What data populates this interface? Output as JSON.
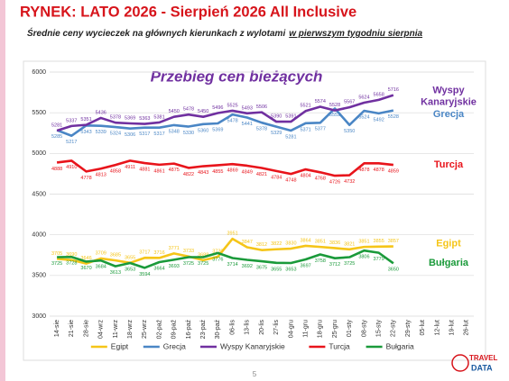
{
  "chart_data": {
    "type": "line",
    "title": "RYNEK: LATO 2026 - Sierpień 2026 All Inclusive",
    "subtitle": "Średnie ceny wycieczek na głównych kierunkach  z wylotami",
    "subtitle_underlined": "w pierwszym tygodniu sierpnia",
    "chart_title": "Przebieg cen bieżących",
    "categories": [
      "14-sie",
      "21-sie",
      "28-sie",
      "04-wrz",
      "11-wrz",
      "18-wrz",
      "25-wrz",
      "02-paź",
      "09-paź",
      "16-paź",
      "23-paź",
      "30-paź",
      "06-lis",
      "13-lis",
      "20-lis",
      "27-lis",
      "04-gru",
      "11-gru",
      "18-gru",
      "25-gru",
      "01-sty",
      "08-sty",
      "15-sty",
      "22-sty",
      "29-sty",
      "05-lut",
      "12-lut",
      "19-lut",
      "26-lut"
    ],
    "series": [
      {
        "name": "Egipt",
        "color": "#f5c518",
        "label_pos": "above",
        "values": [
          3705,
          3690,
          3646,
          3709,
          3685,
          3655,
          3717,
          3716,
          3771,
          3733,
          3688,
          3730,
          3951,
          3847,
          3812,
          3822,
          3830,
          3864,
          3851,
          3836,
          3821,
          3851,
          3855,
          3857,
          null,
          null,
          null,
          null,
          null
        ]
      },
      {
        "name": "Grecja",
        "color": "#4a86c5",
        "label_pos": "below",
        "values": [
          5285,
          5217,
          5343,
          5339,
          5324,
          5306,
          5317,
          5317,
          5348,
          5330,
          5360,
          5369,
          5478,
          5441,
          5378,
          5329,
          5281,
          5371,
          5377,
          5552,
          5350,
          5524,
          5492,
          5528,
          null,
          null,
          null,
          null,
          null
        ]
      },
      {
        "name": "Wyspy Kanaryjskie",
        "color": "#7030a0",
        "label_pos": "above",
        "values": [
          5281,
          5337,
          5351,
          5436,
          5378,
          5369,
          5363,
          5381,
          5450,
          5478,
          5450,
          5496,
          5525,
          5493,
          5506,
          5390,
          5391,
          5521,
          5574,
          5528,
          5567,
          5624,
          5658,
          5716,
          null,
          null,
          null,
          null,
          null
        ]
      },
      {
        "name": "Turcja",
        "color": "#e8141b",
        "label_pos": "below",
        "values": [
          4888,
          4910,
          4778,
          4813,
          4858,
          4911,
          4881,
          4861,
          4875,
          4822,
          4843,
          4855,
          4869,
          4849,
          4821,
          4784,
          4748,
          4804,
          4768,
          4726,
          4732,
          4878,
          4878,
          4859,
          null,
          null,
          null,
          null,
          null
        ]
      },
      {
        "name": "Bułgaria",
        "color": "#1a9a3a",
        "label_pos": "below",
        "values": [
          3725,
          3728,
          3670,
          3684,
          3613,
          3653,
          3594,
          3664,
          3693,
          3725,
          3725,
          3776,
          3714,
          3692,
          3675,
          3655,
          3653,
          3697,
          3758,
          3712,
          3725,
          3806,
          3779,
          3650,
          null,
          null,
          null,
          null,
          null
        ]
      }
    ],
    "end_labels": [
      {
        "lines": [
          "Wyspy",
          "Kanaryjskie"
        ],
        "color": "#7030a0",
        "y": 5700
      },
      {
        "lines": [
          "Grecja"
        ],
        "color": "#4a86c5",
        "y": 5480
      },
      {
        "lines": [
          "Turcja"
        ],
        "color": "#e8141b",
        "y": 4860
      },
      {
        "lines": [
          "Egipt"
        ],
        "color": "#f5c518",
        "y": 3890
      },
      {
        "lines": [
          "Bułgaria"
        ],
        "color": "#1a9a3a",
        "y": 3650
      }
    ],
    "ylim": [
      3000,
      6000
    ],
    "yticks": [
      3000,
      3500,
      4000,
      4500,
      5000,
      5500,
      6000
    ],
    "grid": true,
    "legend": "bottom",
    "page_number": "5",
    "logo": [
      "TRAVEL",
      "DATA"
    ]
  }
}
